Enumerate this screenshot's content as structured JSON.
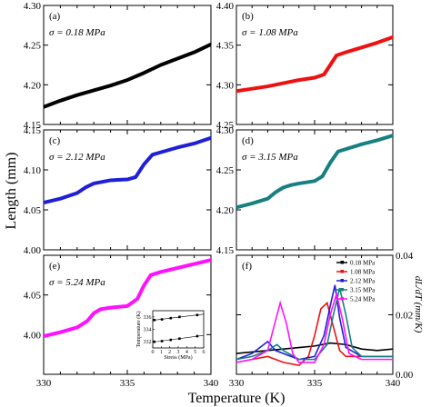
{
  "figure": {
    "xlabel": "Temperature (K)",
    "ylabel": "Length (mm)",
    "right_ylabel": "dL/dT (mm/K)"
  },
  "chart_data": [
    {
      "id": "a",
      "type": "line",
      "panel_label": "(a)",
      "annotation": "σ = 0.18 MPa",
      "color": "#000000",
      "xlim": [
        330,
        340
      ],
      "ylim": [
        4.15,
        4.3
      ],
      "yticks": [
        "4.15",
        "4.20",
        "4.25",
        "4.30"
      ],
      "x": [
        330,
        331,
        332,
        333,
        334,
        335,
        336,
        337,
        338,
        339,
        340
      ],
      "y": [
        4.172,
        4.18,
        4.187,
        4.193,
        4.199,
        4.206,
        4.215,
        4.225,
        4.233,
        4.241,
        4.251
      ]
    },
    {
      "id": "b",
      "type": "line",
      "panel_label": "(b)",
      "annotation": "σ = 1.08 MPa",
      "color": "#ee1111",
      "xlim": [
        330,
        340
      ],
      "ylim": [
        4.25,
        4.4
      ],
      "yticks": [
        "4.25",
        "4.30",
        "4.35",
        "4.40"
      ],
      "x": [
        330,
        331,
        332,
        333,
        334,
        335,
        335.6,
        336,
        336.4,
        337,
        338,
        339,
        340
      ],
      "y": [
        4.292,
        4.295,
        4.298,
        4.302,
        4.306,
        4.309,
        4.313,
        4.325,
        4.337,
        4.341,
        4.347,
        4.353,
        4.36
      ]
    },
    {
      "id": "c",
      "type": "line",
      "panel_label": "(c)",
      "annotation": "σ = 2.12 MPa",
      "color": "#1f1fd6",
      "xlim": [
        330,
        340
      ],
      "ylim": [
        4.0,
        4.15
      ],
      "yticks": [
        "4.00",
        "4.05",
        "4.10",
        "4.15"
      ],
      "x": [
        330,
        331,
        332,
        332.5,
        333,
        333.5,
        334,
        335,
        335.5,
        336,
        336.5,
        337,
        338,
        339,
        340
      ],
      "y": [
        4.059,
        4.064,
        4.071,
        4.078,
        4.083,
        4.085,
        4.087,
        4.088,
        4.091,
        4.107,
        4.119,
        4.122,
        4.128,
        4.133,
        4.14
      ]
    },
    {
      "id": "d",
      "type": "line",
      "panel_label": "(d)",
      "annotation": "σ = 3.15 MPa",
      "color": "#178080",
      "xlim": [
        330,
        340
      ],
      "ylim": [
        4.15,
        4.3
      ],
      "yticks": [
        "4.15",
        "4.20",
        "4.25",
        "4.30"
      ],
      "x": [
        330,
        331,
        332,
        332.5,
        333,
        333.5,
        334,
        335,
        335.5,
        336,
        336.5,
        337,
        338,
        339,
        340
      ],
      "y": [
        4.203,
        4.208,
        4.214,
        4.222,
        4.228,
        4.231,
        4.233,
        4.236,
        4.242,
        4.259,
        4.273,
        4.276,
        4.282,
        4.287,
        4.293
      ]
    },
    {
      "id": "e",
      "type": "line",
      "panel_label": "(e)",
      "annotation": "σ = 5.24 MPa",
      "color": "#ff11ff",
      "xlim": [
        330,
        340
      ],
      "ylim": [
        3.95,
        4.1
      ],
      "yticks": [
        "4.00",
        "4.05"
      ],
      "x": [
        330,
        331,
        332,
        332.6,
        333,
        333.4,
        334,
        335,
        335.6,
        336,
        336.4,
        337,
        338,
        339,
        340
      ],
      "y": [
        3.998,
        4.003,
        4.009,
        4.017,
        4.027,
        4.032,
        4.034,
        4.036,
        4.045,
        4.062,
        4.075,
        4.079,
        4.084,
        4.089,
        4.094
      ]
    },
    {
      "id": "f",
      "type": "line",
      "panel_label": "(f)",
      "xlim": [
        330,
        340
      ],
      "ylim": [
        0.0,
        0.04
      ],
      "yticks": [
        "0.00",
        "0.02",
        "0.04"
      ],
      "xticks": [
        "330",
        "335",
        "340"
      ],
      "legend_position": "top-right",
      "series": [
        {
          "name": "0.18 MPa",
          "color": "#000000",
          "marker": "square",
          "x": [
            330,
            331,
            332,
            333,
            334,
            335,
            336,
            337,
            338,
            339,
            340
          ],
          "y": [
            0.007,
            0.0075,
            0.008,
            0.0085,
            0.009,
            0.0095,
            0.0105,
            0.01,
            0.0085,
            0.008,
            0.0085
          ]
        },
        {
          "name": "1.08 MPa",
          "color": "#ee1111",
          "marker": "circle",
          "x": [
            330,
            331,
            332,
            333,
            334,
            334.6,
            335,
            335.4,
            335.8,
            336.2,
            336.6,
            337,
            338,
            339,
            340
          ],
          "y": [
            0.004,
            0.005,
            0.006,
            0.004,
            0.003,
            0.006,
            0.013,
            0.022,
            0.024,
            0.016,
            0.008,
            0.006,
            0.006,
            0.006,
            0.006
          ]
        },
        {
          "name": "2.12 MPa",
          "color": "#1f1fd6",
          "marker": "triangle-up",
          "x": [
            330,
            331,
            332,
            332.5,
            333,
            334,
            335,
            335.6,
            336,
            336.3,
            336.6,
            337,
            338,
            339,
            340
          ],
          "y": [
            0.005,
            0.007,
            0.011,
            0.008,
            0.007,
            0.005,
            0.006,
            0.013,
            0.023,
            0.03,
            0.019,
            0.009,
            0.006,
            0.006,
            0.006
          ]
        },
        {
          "name": "3.15 MPa",
          "color": "#178080",
          "marker": "triangle-down",
          "x": [
            330,
            331,
            332,
            332.6,
            333,
            334,
            335,
            335.8,
            336.2,
            336.6,
            337,
            337.4,
            338,
            339,
            340
          ],
          "y": [
            0.005,
            0.006,
            0.008,
            0.01,
            0.008,
            0.005,
            0.005,
            0.01,
            0.02,
            0.029,
            0.02,
            0.009,
            0.006,
            0.006,
            0.006
          ]
        },
        {
          "name": "5.24 MPa",
          "color": "#ff11ff",
          "marker": "diamond",
          "x": [
            330,
            331,
            332,
            332.4,
            332.8,
            333.2,
            333.6,
            334,
            335,
            335.6,
            336,
            336.4,
            336.8,
            337.2,
            338,
            339,
            340
          ],
          "y": [
            0.004,
            0.005,
            0.008,
            0.016,
            0.024,
            0.017,
            0.007,
            0.004,
            0.004,
            0.01,
            0.02,
            0.027,
            0.018,
            0.007,
            0.005,
            0.005,
            0.005
          ]
        }
      ]
    }
  ],
  "inset": {
    "type": "scatter",
    "xlabel": "Stress (MPa)",
    "ylabel": "Temperature (K)",
    "xlim": [
      0,
      6
    ],
    "ylim": [
      331,
      337
    ],
    "xticks": [
      "0",
      "1",
      "2",
      "3",
      "4",
      "5",
      "6"
    ],
    "yticks": [
      "332",
      "334",
      "336"
    ],
    "series": [
      {
        "x": [
          0.18,
          1.08,
          2.12,
          3.15,
          5.24
        ],
        "y": [
          335.5,
          335.6,
          335.8,
          336.0,
          336.3
        ]
      },
      {
        "x": [
          0.18,
          1.08,
          2.12,
          3.15,
          5.24
        ],
        "y": [
          332.0,
          332.1,
          332.3,
          332.5,
          332.9
        ]
      }
    ]
  }
}
